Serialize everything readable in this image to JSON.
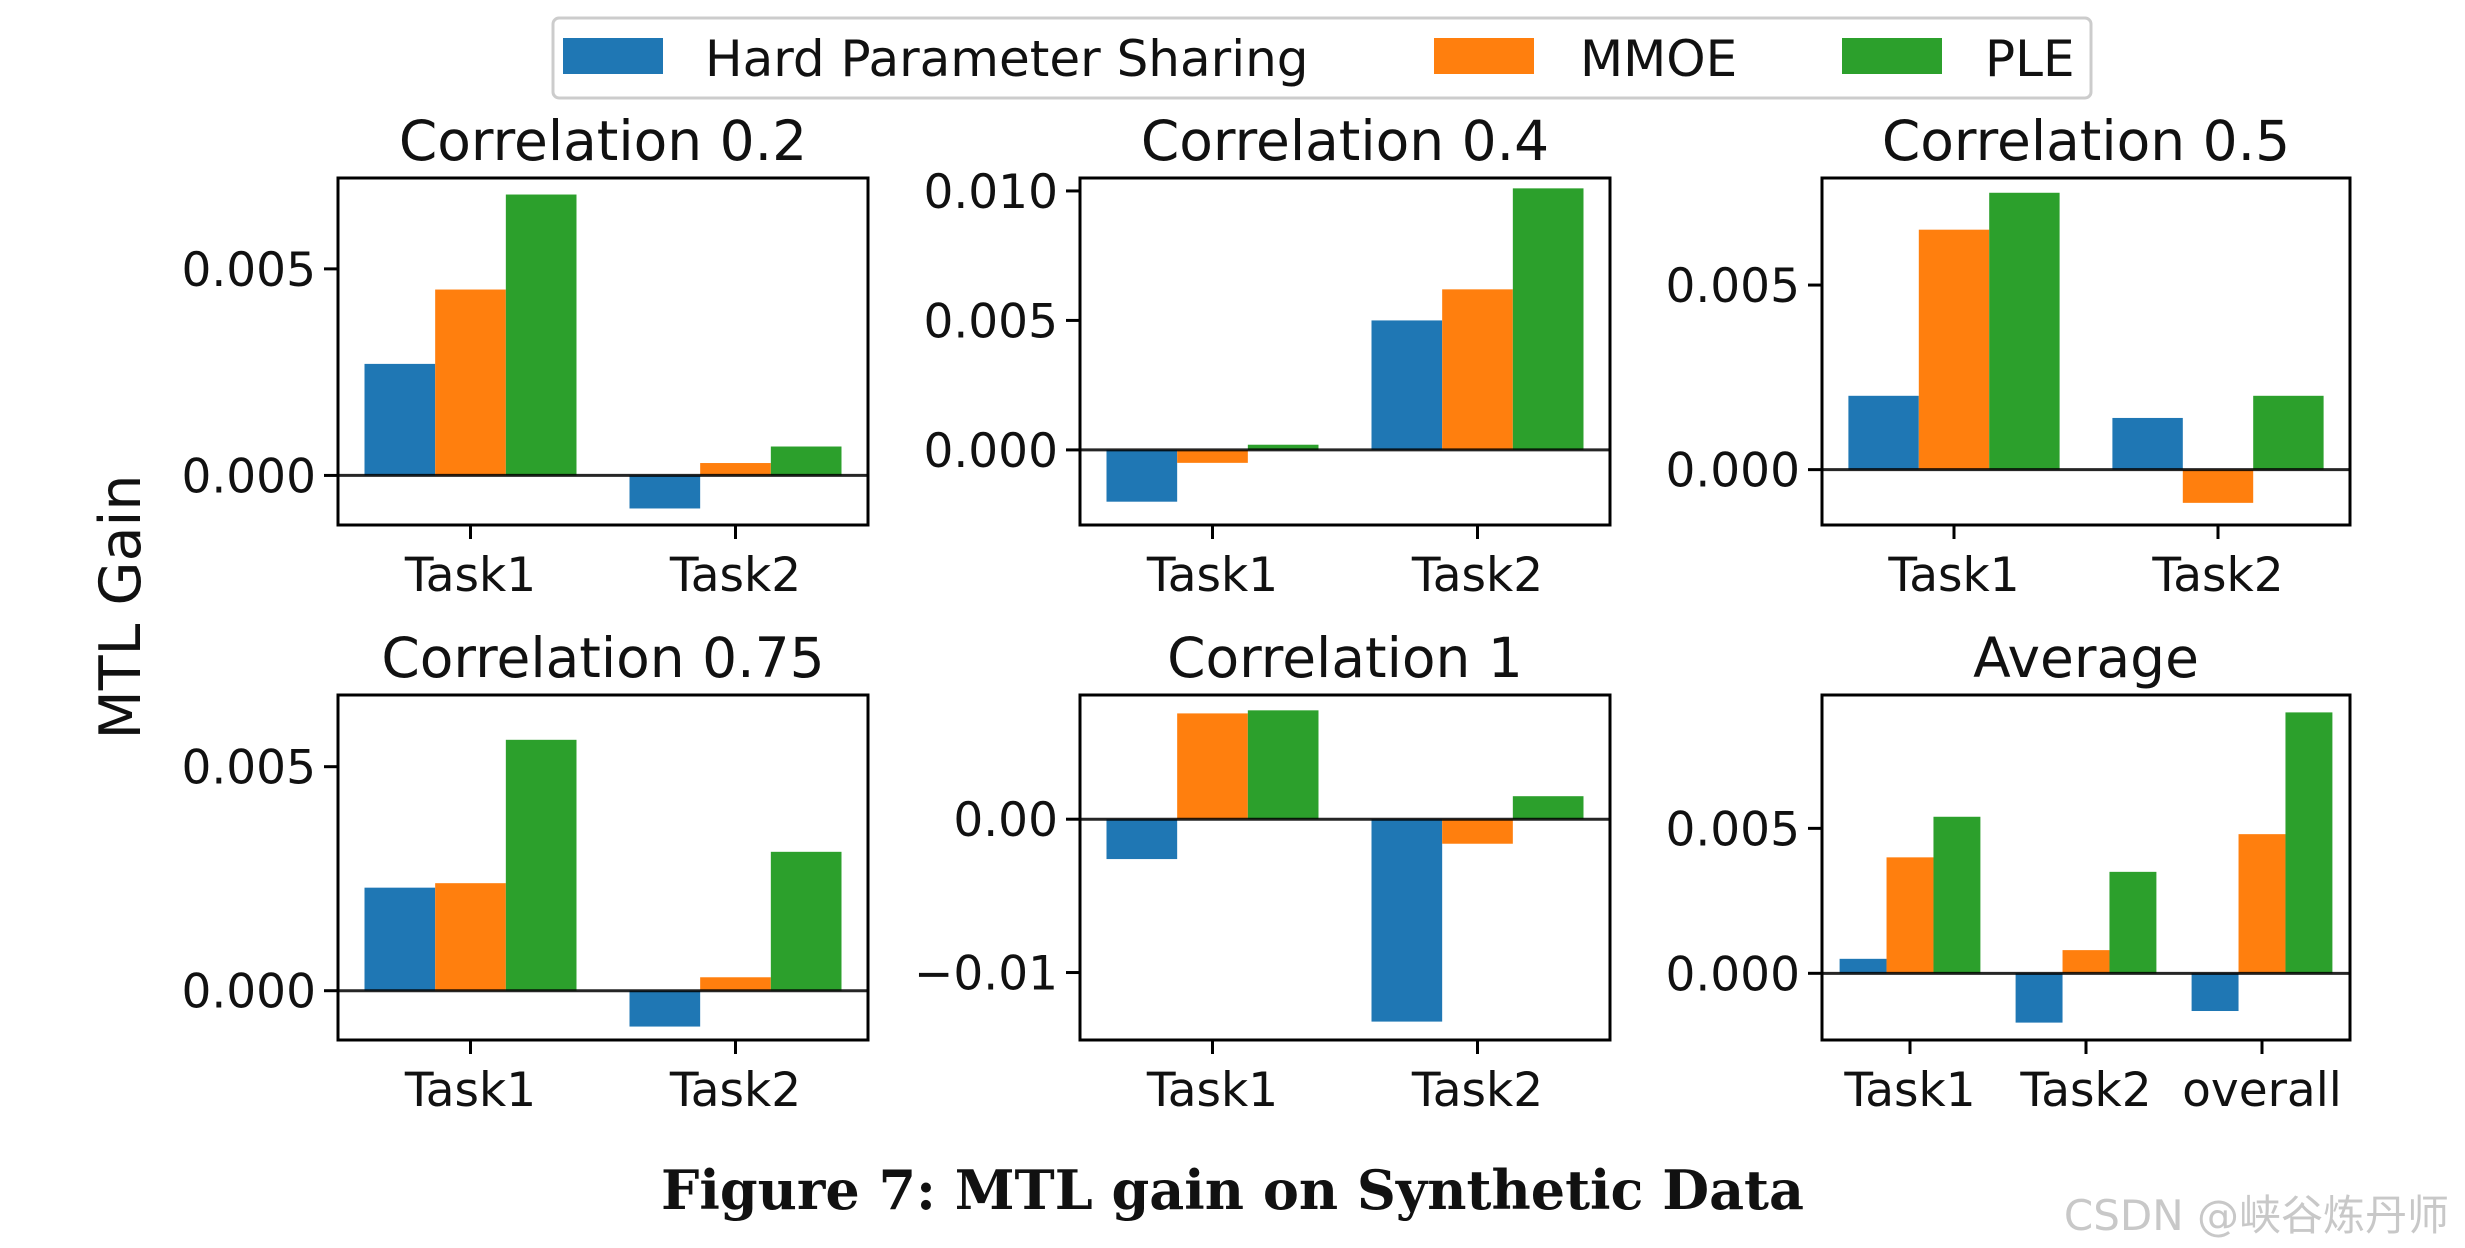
{
  "chart_data": {
    "type": "bar",
    "ylabel": "MTL Gain",
    "legend": {
      "placement": "top-center",
      "entries": [
        {
          "name": "Hard Parameter Sharing",
          "color": "#1f77b4"
        },
        {
          "name": "MMOE",
          "color": "#ff7f0e"
        },
        {
          "name": "PLE",
          "color": "#2ca02c"
        }
      ]
    },
    "panels": [
      {
        "title": "Correlation 0.2",
        "categories": [
          "Task1",
          "Task2"
        ],
        "ylim": [
          -0.0012,
          0.0072
        ],
        "yticks": [
          0.0,
          0.005
        ],
        "ytick_labels": [
          "0.000",
          "0.005"
        ],
        "series": [
          {
            "name": "Hard Parameter Sharing",
            "values": [
              0.0027,
              -0.0008
            ]
          },
          {
            "name": "MMOE",
            "values": [
              0.0045,
              0.0003
            ]
          },
          {
            "name": "PLE",
            "values": [
              0.0068,
              0.0007
            ]
          }
        ]
      },
      {
        "title": "Correlation 0.4",
        "categories": [
          "Task1",
          "Task2"
        ],
        "ylim": [
          -0.0029,
          0.0105
        ],
        "yticks": [
          0.0,
          0.005,
          0.01
        ],
        "ytick_labels": [
          "0.000",
          "0.005",
          "0.010"
        ],
        "series": [
          {
            "name": "Hard Parameter Sharing",
            "values": [
              -0.002,
              0.005
            ]
          },
          {
            "name": "MMOE",
            "values": [
              -0.0005,
              0.0062
            ]
          },
          {
            "name": "PLE",
            "values": [
              0.0002,
              0.0101
            ]
          }
        ]
      },
      {
        "title": "Correlation 0.5",
        "categories": [
          "Task1",
          "Task2"
        ],
        "ylim": [
          -0.0015,
          0.0079
        ],
        "yticks": [
          0.0,
          0.005
        ],
        "ytick_labels": [
          "0.000",
          "0.005"
        ],
        "series": [
          {
            "name": "Hard Parameter Sharing",
            "values": [
              0.002,
              0.0014
            ]
          },
          {
            "name": "MMOE",
            "values": [
              0.0065,
              -0.0009
            ]
          },
          {
            "name": "PLE",
            "values": [
              0.0075,
              0.002
            ]
          }
        ]
      },
      {
        "title": "Correlation 0.75",
        "categories": [
          "Task1",
          "Task2"
        ],
        "ylim": [
          -0.0011,
          0.0066
        ],
        "yticks": [
          0.0,
          0.005
        ],
        "ytick_labels": [
          "0.000",
          "0.005"
        ],
        "series": [
          {
            "name": "Hard Parameter Sharing",
            "values": [
              0.0023,
              -0.0008
            ]
          },
          {
            "name": "MMOE",
            "values": [
              0.0024,
              0.0003
            ]
          },
          {
            "name": "PLE",
            "values": [
              0.0056,
              0.0031
            ]
          }
        ]
      },
      {
        "title": "Correlation 1",
        "categories": [
          "Task1",
          "Task2"
        ],
        "ylim": [
          -0.0144,
          0.0081
        ],
        "yticks": [
          0.0,
          -0.01
        ],
        "ytick_labels": [
          "0.00",
          "−0.01"
        ],
        "series": [
          {
            "name": "Hard Parameter Sharing",
            "values": [
              -0.0026,
              -0.0132
            ]
          },
          {
            "name": "MMOE",
            "values": [
              0.0069,
              -0.0016
            ]
          },
          {
            "name": "PLE",
            "values": [
              0.0071,
              0.0015
            ]
          }
        ]
      },
      {
        "title": "Average",
        "categories": [
          "Task1",
          "Task2",
          "overall"
        ],
        "ylim": [
          -0.0023,
          0.0096
        ],
        "yticks": [
          0.0,
          0.005
        ],
        "ytick_labels": [
          "0.000",
          "0.005"
        ],
        "series": [
          {
            "name": "Hard Parameter Sharing",
            "values": [
              0.0005,
              -0.0017,
              -0.0013
            ]
          },
          {
            "name": "MMOE",
            "values": [
              0.004,
              0.0008,
              0.0048
            ]
          },
          {
            "name": "PLE",
            "values": [
              0.0054,
              0.0035,
              0.009
            ]
          }
        ]
      }
    ]
  },
  "caption": "Figure 7: MTL gain on Synthetic Data",
  "watermark": "CSDN @峡谷炼丹师"
}
